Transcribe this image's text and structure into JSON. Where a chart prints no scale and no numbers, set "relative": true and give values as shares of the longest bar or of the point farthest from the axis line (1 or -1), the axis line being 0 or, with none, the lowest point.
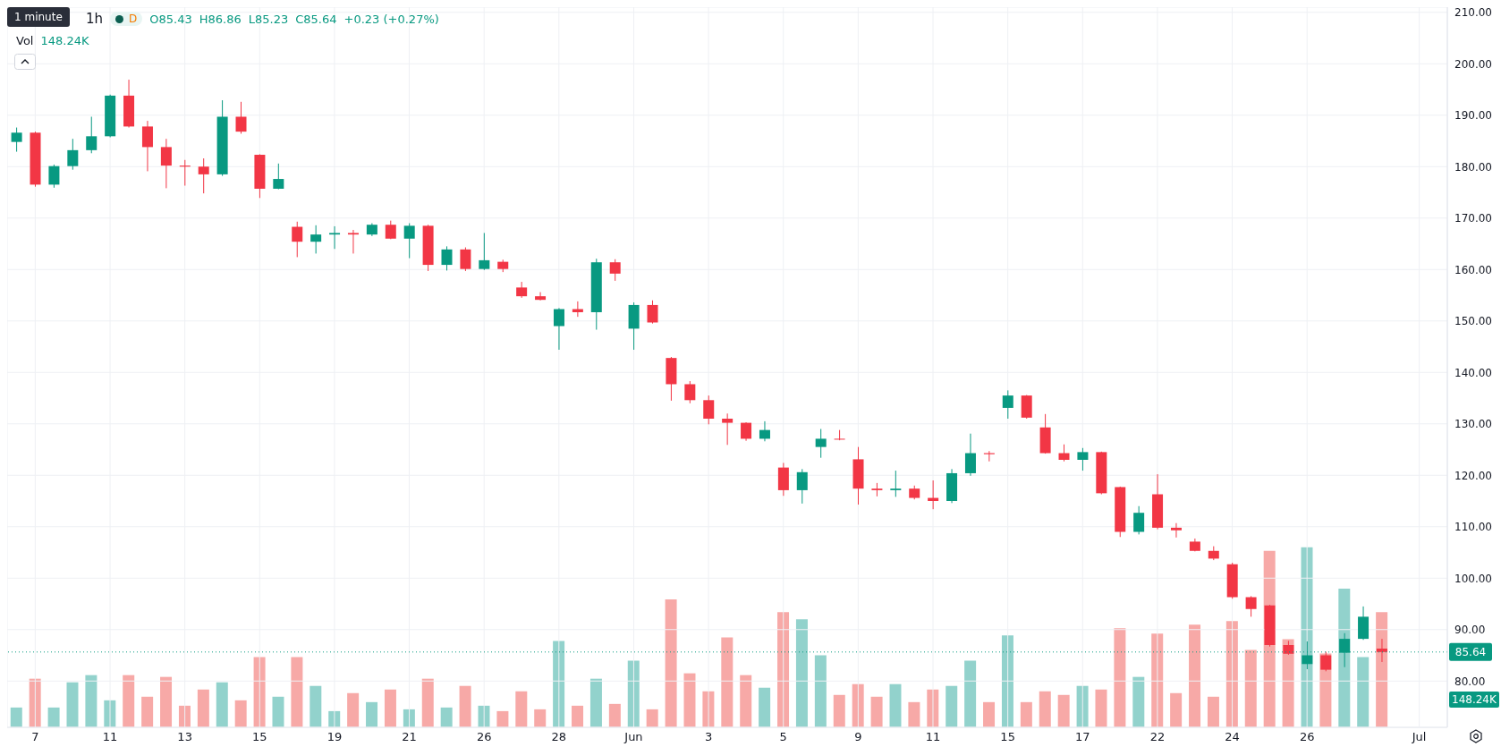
{
  "chart_data": [
    {
      "type": "candlestick",
      "title": "1h",
      "annotations": [
        "1 minute",
        "D",
        "O85.43",
        "H86.86",
        "L85.23",
        "C85.64",
        "+0.23 (+0.27%)"
      ],
      "categories": [
        null,
        "7",
        null,
        null,
        null,
        "11",
        null,
        null,
        null,
        "13",
        null,
        null,
        null,
        "15",
        null,
        null,
        null,
        "19",
        null,
        null,
        null,
        "21",
        null,
        null,
        null,
        "26",
        null,
        null,
        null,
        "28",
        null,
        null,
        null,
        "Jun",
        null,
        null,
        null,
        "3",
        null,
        null,
        null,
        "5",
        null,
        null,
        null,
        "9",
        null,
        null,
        null,
        "11",
        null,
        null,
        null,
        "15",
        null,
        null,
        null,
        "17",
        null,
        null,
        null,
        "22",
        null,
        null,
        null,
        "24",
        null,
        null,
        null,
        "26",
        null,
        null,
        null,
        null,
        null,
        "Jul",
        null
      ],
      "ohlc": [
        [
          184.8,
          187.6,
          182.9,
          186.6
        ],
        [
          186.6,
          186.8,
          176.1,
          176.5
        ],
        [
          176.5,
          180.4,
          175.9,
          180.1
        ],
        [
          180.1,
          185.4,
          179.4,
          183.2
        ],
        [
          183.2,
          189.7,
          182.6,
          185.9
        ],
        [
          185.9,
          194.0,
          185.7,
          193.8
        ],
        [
          193.8,
          196.9,
          187.6,
          187.8
        ],
        [
          187.8,
          188.9,
          179.1,
          183.8
        ],
        [
          183.8,
          185.4,
          175.8,
          180.2
        ],
        [
          180.2,
          181.3,
          176.3,
          180.0
        ],
        [
          180.0,
          181.6,
          174.8,
          178.5
        ],
        [
          178.5,
          192.9,
          178.2,
          189.7
        ],
        [
          189.7,
          192.6,
          186.4,
          186.8
        ],
        [
          182.3,
          182.4,
          173.9,
          175.7
        ],
        [
          175.7,
          180.6,
          175.6,
          177.6
        ],
        [
          168.3,
          169.3,
          162.4,
          165.4
        ],
        [
          165.4,
          168.6,
          163.1,
          166.8
        ],
        [
          166.8,
          168.4,
          164.0,
          167.1
        ],
        [
          167.1,
          167.7,
          163.1,
          166.8
        ],
        [
          166.8,
          169.0,
          166.5,
          168.7
        ],
        [
          168.7,
          169.5,
          165.9,
          166.0
        ],
        [
          166.0,
          169.0,
          162.2,
          168.5
        ],
        [
          168.5,
          168.7,
          159.7,
          160.9
        ],
        [
          160.9,
          164.5,
          159.8,
          163.9
        ],
        [
          163.9,
          164.3,
          159.7,
          160.1
        ],
        [
          160.1,
          167.1,
          159.9,
          161.8
        ],
        [
          161.5,
          161.9,
          159.5,
          160.1
        ],
        [
          156.5,
          157.6,
          154.5,
          154.8
        ],
        [
          154.8,
          155.6,
          154.0,
          154.1
        ],
        [
          149.0,
          152.5,
          144.4,
          152.3
        ],
        [
          152.3,
          153.8,
          150.8,
          151.7
        ],
        [
          151.7,
          162.1,
          148.3,
          161.4
        ],
        [
          161.4,
          162.0,
          157.8,
          159.2
        ],
        [
          148.5,
          153.6,
          144.4,
          153.1
        ],
        [
          153.1,
          154.0,
          149.5,
          149.7
        ],
        [
          142.8,
          143.0,
          134.5,
          137.7
        ],
        [
          137.7,
          138.3,
          134.0,
          134.6
        ],
        [
          134.6,
          135.5,
          129.9,
          131.0
        ],
        [
          131.0,
          132.0,
          125.9,
          130.2
        ],
        [
          130.2,
          130.3,
          126.7,
          127.1
        ],
        [
          127.1,
          130.5,
          126.6,
          128.8
        ],
        [
          121.5,
          122.4,
          116.0,
          117.1
        ],
        [
          117.1,
          121.2,
          114.5,
          120.6
        ],
        [
          125.5,
          129.0,
          123.4,
          127.1
        ],
        [
          127.1,
          128.8,
          126.8,
          127.0
        ],
        [
          123.1,
          125.5,
          114.3,
          117.4
        ],
        [
          117.4,
          118.5,
          115.9,
          117.1
        ],
        [
          117.1,
          120.9,
          115.8,
          117.4
        ],
        [
          117.4,
          118.0,
          115.3,
          115.6
        ],
        [
          115.6,
          119.0,
          113.4,
          115.0
        ],
        [
          115.0,
          121.2,
          114.6,
          120.4
        ],
        [
          120.4,
          128.1,
          119.9,
          124.3
        ],
        [
          124.3,
          124.7,
          122.7,
          124.1
        ],
        [
          133.1,
          136.5,
          131.0,
          135.5
        ],
        [
          135.5,
          135.6,
          131.0,
          131.2
        ],
        [
          129.3,
          131.9,
          124.2,
          124.3
        ],
        [
          124.3,
          126.0,
          122.7,
          123.0
        ],
        [
          123.0,
          125.3,
          120.9,
          124.5
        ],
        [
          124.5,
          124.6,
          116.3,
          116.5
        ],
        [
          117.7,
          117.8,
          108.0,
          109.0
        ],
        [
          109.0,
          114.0,
          108.5,
          112.7
        ],
        [
          116.3,
          120.2,
          109.5,
          109.8
        ],
        [
          109.8,
          110.7,
          107.9,
          109.3
        ],
        [
          107.1,
          107.7,
          105.2,
          105.3
        ],
        [
          105.3,
          106.2,
          103.5,
          103.8
        ],
        [
          102.7,
          103.0,
          96.0,
          96.3
        ],
        [
          96.3,
          96.5,
          92.5,
          94.0
        ],
        [
          94.7,
          94.8,
          86.7,
          87.0
        ],
        [
          87.0,
          87.8,
          85.1,
          85.3
        ],
        [
          83.3,
          87.7,
          82.3,
          85.0
        ],
        [
          85.0,
          85.7,
          81.9,
          82.2
        ],
        [
          85.5,
          89.3,
          82.7,
          88.2
        ],
        [
          88.2,
          94.5,
          88.0,
          92.5
        ],
        [
          86.3,
          88.2,
          83.7,
          85.64
        ],
        null,
        null,
        null
      ],
      "ylim": [
        71,
        211
      ],
      "yticks": [
        {
          "value": 80,
          "label": "80.00"
        },
        {
          "value": 90,
          "label": "90.00"
        },
        {
          "value": 100,
          "label": "100.00"
        },
        {
          "value": 110,
          "label": "110.00"
        },
        {
          "value": 120,
          "label": "120.00"
        },
        {
          "value": 130,
          "label": "130.00"
        },
        {
          "value": 140,
          "label": "140.00"
        },
        {
          "value": 150,
          "label": "150.00"
        },
        {
          "value": 160,
          "label": "160.00"
        },
        {
          "value": 170,
          "label": "170.00"
        },
        {
          "value": 180,
          "label": "180.00"
        },
        {
          "value": 190,
          "label": "190.00"
        },
        {
          "value": 200,
          "label": "200.00"
        },
        {
          "value": 210,
          "label": "210.00"
        }
      ],
      "grid": true,
      "ref_lines": [
        {
          "axis": "y",
          "value": 85.64,
          "label": "85.64",
          "color": "#089981",
          "line_style": "dotted"
        }
      ]
    },
    {
      "type": "bar",
      "relative": true,
      "annotations": [
        "Vol",
        "148.24K",
        "148.24K"
      ],
      "values": [
        0.11,
        0.27,
        0.11,
        0.25,
        0.29,
        0.15,
        0.29,
        0.17,
        0.28,
        0.12,
        0.21,
        0.25,
        0.15,
        0.39,
        0.17,
        0.39,
        0.23,
        0.09,
        0.19,
        0.14,
        0.21,
        0.1,
        0.27,
        0.11,
        0.23,
        0.12,
        0.09,
        0.2,
        0.1,
        0.48,
        0.12,
        0.27,
        0.13,
        0.37,
        0.1,
        0.71,
        0.3,
        0.2,
        0.5,
        0.29,
        0.22,
        0.64,
        0.6,
        0.4,
        0.18,
        0.24,
        0.17,
        0.24,
        0.14,
        0.21,
        0.23,
        0.37,
        0.14,
        0.51,
        0.14,
        0.2,
        0.18,
        0.23,
        0.21,
        0.55,
        0.28,
        0.52,
        0.19,
        0.57,
        0.17,
        0.59,
        0.43,
        0.98,
        0.49,
        1.0,
        0.41,
        0.77,
        0.39,
        0.64,
        null,
        null,
        null
      ],
      "colors": [
        "#92d2cc",
        "#f7a9a7",
        "#92d2cc",
        "#92d2cc",
        "#92d2cc",
        "#92d2cc",
        "#f7a9a7",
        "#f7a9a7",
        "#f7a9a7",
        "#f7a9a7",
        "#f7a9a7",
        "#92d2cc",
        "#f7a9a7",
        "#f7a9a7",
        "#92d2cc",
        "#f7a9a7",
        "#92d2cc",
        "#92d2cc",
        "#f7a9a7",
        "#92d2cc",
        "#f7a9a7",
        "#92d2cc",
        "#f7a9a7",
        "#92d2cc",
        "#f7a9a7",
        "#92d2cc",
        "#f7a9a7",
        "#f7a9a7",
        "#f7a9a7",
        "#92d2cc",
        "#f7a9a7",
        "#92d2cc",
        "#f7a9a7",
        "#92d2cc",
        "#f7a9a7",
        "#f7a9a7",
        "#f7a9a7",
        "#f7a9a7",
        "#f7a9a7",
        "#f7a9a7",
        "#92d2cc",
        "#f7a9a7",
        "#92d2cc",
        "#92d2cc",
        "#f7a9a7",
        "#f7a9a7",
        "#f7a9a7",
        "#92d2cc",
        "#f7a9a7",
        "#f7a9a7",
        "#92d2cc",
        "#92d2cc",
        "#f7a9a7",
        "#92d2cc",
        "#f7a9a7",
        "#f7a9a7",
        "#f7a9a7",
        "#92d2cc",
        "#f7a9a7",
        "#f7a9a7",
        "#92d2cc",
        "#f7a9a7",
        "#f7a9a7",
        "#f7a9a7",
        "#f7a9a7",
        "#f7a9a7",
        "#f7a9a7",
        "#f7a9a7",
        "#f7a9a7",
        "#92d2cc",
        "#f7a9a7",
        "#92d2cc",
        "#92d2cc",
        "#f7a9a7",
        null,
        null,
        null
      ]
    }
  ]
}
